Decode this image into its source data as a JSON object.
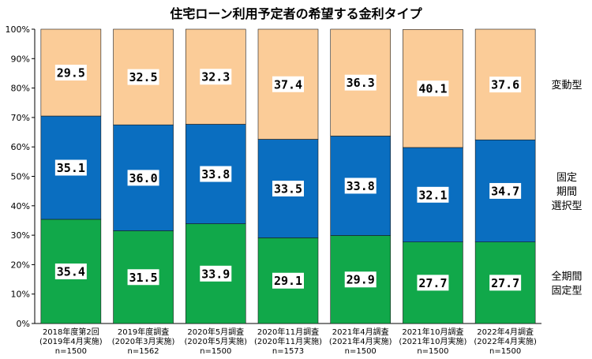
{
  "chart_data": {
    "type": "bar",
    "stacked": true,
    "title": "住宅ローン利用予定者の希望する金利タイプ",
    "categories": [
      [
        "2018年度第2回",
        "(2019年4月実施)",
        "n=1500"
      ],
      [
        "2019年度調査",
        "(2020年3月実施)",
        "n=1562"
      ],
      [
        "2020年5月調査",
        "(2020年5月実施)",
        "n=1500"
      ],
      [
        "2020年11月調査",
        "(2020年11月実施)",
        "n=1573"
      ],
      [
        "2021年4月調査",
        "(2021年4月実施)",
        "n=1500"
      ],
      [
        "2021年10月調査",
        "(2021年10月実施)",
        "n=1500"
      ],
      [
        "2022年4月調査",
        "(2022年4月実施)",
        "n=1500"
      ]
    ],
    "series": [
      {
        "name": [
          "全期間",
          "固定型"
        ],
        "color": "#11a84a",
        "values": [
          35.4,
          31.5,
          33.9,
          29.1,
          29.9,
          27.7,
          27.7
        ],
        "labels": [
          "35.4",
          "31.5",
          "33.9",
          "29.1",
          "29.9",
          "27.7",
          "27.7"
        ]
      },
      {
        "name": [
          "固定",
          "期間",
          "選択型"
        ],
        "color": "#0a6ec0",
        "values": [
          35.1,
          36.0,
          33.8,
          33.5,
          33.8,
          32.1,
          34.7
        ],
        "labels": [
          "35.1",
          "36.0",
          "33.8",
          "33.5",
          "33.8",
          "32.1",
          "34.7"
        ]
      },
      {
        "name": [
          "変動型"
        ],
        "color": "#fbcc98",
        "values": [
          29.5,
          32.5,
          32.3,
          37.4,
          36.3,
          40.1,
          37.6
        ],
        "labels": [
          "29.5",
          "32.5",
          "32.3",
          "37.4",
          "36.3",
          "40.1",
          "37.6"
        ]
      }
    ],
    "ylim": [
      0,
      100
    ],
    "yticks": [
      "0%",
      "10%",
      "20%",
      "30%",
      "40%",
      "50%",
      "60%",
      "70%",
      "80%",
      "90%",
      "100%"
    ],
    "legend": "right",
    "grid": false
  }
}
